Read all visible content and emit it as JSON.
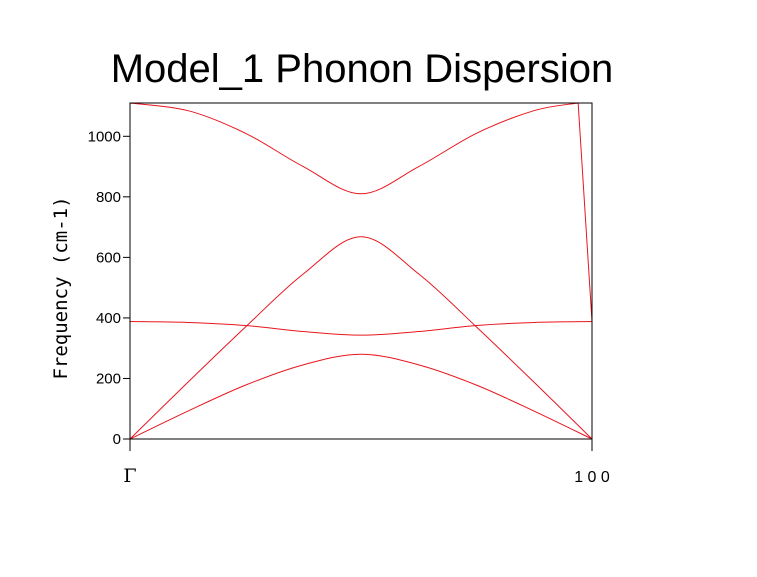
{
  "chart_data": {
    "type": "line",
    "title": "Model_1 Phonon Dispersion",
    "ylabel": "Frequency (cm-1)",
    "xlabel": "",
    "x_ticks": [
      {
        "position": 0.0,
        "label": "Γ"
      },
      {
        "position": 1.0,
        "label": "1 0 0"
      }
    ],
    "y_ticks": [
      0,
      200,
      400,
      600,
      800,
      1000
    ],
    "xlim": [
      0,
      1
    ],
    "ylim": [
      0,
      1110
    ],
    "grid": false,
    "line_color": "#e8161e",
    "series": [
      {
        "x": [
          0,
          0.125,
          0.25,
          0.375,
          0.5,
          0.625,
          0.75,
          0.875,
          1.0
        ],
        "values": [
          0,
          92,
          178,
          245,
          280,
          245,
          178,
          92,
          0
        ]
      },
      {
        "x": [
          0,
          0.125,
          0.25,
          0.375,
          0.5,
          0.625,
          0.75,
          0.875,
          1.0
        ],
        "values": [
          0,
          187,
          370,
          545,
          668,
          545,
          370,
          187,
          0
        ]
      },
      {
        "x": [
          0,
          0.125,
          0.25,
          0.375,
          0.5,
          0.625,
          0.75,
          0.875,
          1.0
        ],
        "values": [
          388,
          385,
          375,
          355,
          343,
          355,
          375,
          385,
          388
        ]
      },
      {
        "x": [
          0,
          0.125,
          0.25,
          0.375,
          0.5,
          0.625,
          0.75,
          0.875,
          0.97,
          1.0
        ],
        "values": [
          1110,
          1085,
          1010,
          900,
          810,
          900,
          1010,
          1085,
          1110,
          388
        ]
      }
    ]
  }
}
